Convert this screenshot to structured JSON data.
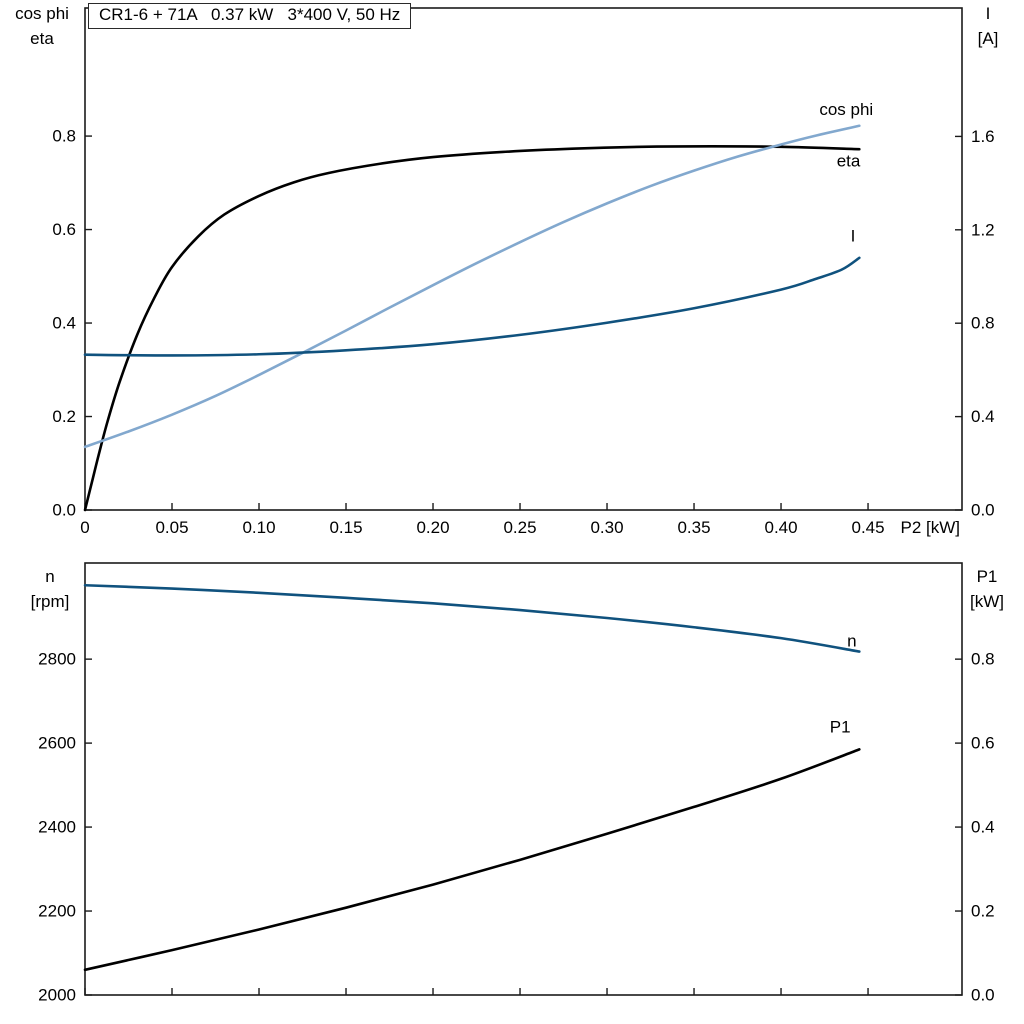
{
  "accent_colors": {
    "black_curve": "#000000",
    "light_blue_curve": "#82a8ce",
    "dark_blue_curve": "#10527e",
    "plot_border": "#1a1a1a"
  },
  "chart_data": [
    {
      "type": "line",
      "title": "CR1-6 + 71A   0.37 kW   3*400 V, 50 Hz",
      "x_axis": {
        "label": "P2 [kW]",
        "min": 0,
        "max": 0.504,
        "ticks": [
          0,
          0.05,
          0.1,
          0.15,
          0.2,
          0.25,
          0.3,
          0.35,
          0.4,
          0.45
        ],
        "tick_labels": [
          "0",
          "0.05",
          "0.10",
          "0.15",
          "0.20",
          "0.25",
          "0.30",
          "0.35",
          "0.40",
          "0.45"
        ]
      },
      "y_left": {
        "label_lines": [
          "cos phi",
          "eta"
        ],
        "min": 0,
        "max": 1.074,
        "ticks": [
          0.0,
          0.2,
          0.4,
          0.6,
          0.8
        ],
        "tick_labels": [
          "0.0",
          "0.2",
          "0.4",
          "0.6",
          "0.8"
        ]
      },
      "y_right": {
        "label_lines": [
          "I",
          "[A]"
        ],
        "min": 0,
        "max": 2.15,
        "ticks": [
          0.0,
          0.4,
          0.8,
          1.2,
          1.6
        ],
        "tick_labels": [
          "0.0",
          "0.4",
          "0.8",
          "1.2",
          "1.6"
        ]
      },
      "series": [
        {
          "name": "eta",
          "axis": "left",
          "color": "#000000",
          "label": "eta",
          "label_at": [
            0.432,
            0.735
          ],
          "points": [
            [
              0,
              0
            ],
            [
              0.004,
              0.06
            ],
            [
              0.008,
              0.12
            ],
            [
              0.013,
              0.19
            ],
            [
              0.02,
              0.275
            ],
            [
              0.03,
              0.375
            ],
            [
              0.04,
              0.455
            ],
            [
              0.05,
              0.52
            ],
            [
              0.065,
              0.585
            ],
            [
              0.08,
              0.632
            ],
            [
              0.1,
              0.672
            ],
            [
              0.12,
              0.701
            ],
            [
              0.14,
              0.721
            ],
            [
              0.17,
              0.741
            ],
            [
              0.2,
              0.755
            ],
            [
              0.24,
              0.766
            ],
            [
              0.28,
              0.773
            ],
            [
              0.32,
              0.777
            ],
            [
              0.36,
              0.778
            ],
            [
              0.4,
              0.777
            ],
            [
              0.445,
              0.772
            ]
          ]
        },
        {
          "name": "cos phi",
          "axis": "left",
          "color": "#82a8ce",
          "label": "cos phi",
          "label_at": [
            0.422,
            0.845
          ],
          "points": [
            [
              0,
              0.135
            ],
            [
              0.025,
              0.168
            ],
            [
              0.05,
              0.204
            ],
            [
              0.075,
              0.244
            ],
            [
              0.1,
              0.289
            ],
            [
              0.125,
              0.336
            ],
            [
              0.15,
              0.384
            ],
            [
              0.175,
              0.433
            ],
            [
              0.2,
              0.481
            ],
            [
              0.225,
              0.528
            ],
            [
              0.25,
              0.573
            ],
            [
              0.275,
              0.616
            ],
            [
              0.3,
              0.656
            ],
            [
              0.325,
              0.693
            ],
            [
              0.35,
              0.726
            ],
            [
              0.375,
              0.756
            ],
            [
              0.4,
              0.782
            ],
            [
              0.42,
              0.801
            ],
            [
              0.445,
              0.822
            ]
          ]
        },
        {
          "name": "I",
          "axis": "right",
          "color": "#10527e",
          "label": "I",
          "label_at": [
            0.44,
            1.15
          ],
          "points": [
            [
              0,
              0.665
            ],
            [
              0.05,
              0.662
            ],
            [
              0.1,
              0.667
            ],
            [
              0.15,
              0.684
            ],
            [
              0.2,
              0.71
            ],
            [
              0.25,
              0.75
            ],
            [
              0.3,
              0.802
            ],
            [
              0.35,
              0.864
            ],
            [
              0.4,
              0.944
            ],
            [
              0.42,
              0.99
            ],
            [
              0.435,
              1.03
            ],
            [
              0.445,
              1.08
            ]
          ]
        }
      ]
    },
    {
      "type": "line",
      "title": "",
      "x_axis": {
        "label": "",
        "min": 0,
        "max": 0.504,
        "ticks": [
          0,
          0.05,
          0.1,
          0.15,
          0.2,
          0.25,
          0.3,
          0.35,
          0.4,
          0.45
        ],
        "tick_labels": []
      },
      "y_left": {
        "label_lines": [
          "n",
          "[rpm]"
        ],
        "min": 2000,
        "max": 3029,
        "ticks": [
          2000,
          2200,
          2400,
          2600,
          2800
        ],
        "tick_labels": [
          "2000",
          "2200",
          "2400",
          "2600",
          "2800"
        ]
      },
      "y_right": {
        "label_lines": [
          "P1",
          "[kW]"
        ],
        "min": 0,
        "max": 1.029,
        "ticks": [
          0.0,
          0.2,
          0.4,
          0.6,
          0.8
        ],
        "tick_labels": [
          "0.0",
          "0.2",
          "0.4",
          "0.6",
          "0.8"
        ]
      },
      "series": [
        {
          "name": "n",
          "axis": "left",
          "color": "#10527e",
          "label": "n",
          "label_at": [
            0.438,
            2830
          ],
          "points": [
            [
              0,
              2976
            ],
            [
              0.05,
              2968
            ],
            [
              0.1,
              2958
            ],
            [
              0.15,
              2946
            ],
            [
              0.2,
              2933
            ],
            [
              0.25,
              2917
            ],
            [
              0.3,
              2898
            ],
            [
              0.35,
              2876
            ],
            [
              0.4,
              2850
            ],
            [
              0.445,
              2818
            ]
          ]
        },
        {
          "name": "P1",
          "axis": "right",
          "color": "#000000",
          "label": "P1",
          "label_at": [
            0.428,
            0.625
          ],
          "points": [
            [
              0,
              0.06
            ],
            [
              0.05,
              0.107
            ],
            [
              0.1,
              0.156
            ],
            [
              0.15,
              0.208
            ],
            [
              0.2,
              0.263
            ],
            [
              0.25,
              0.322
            ],
            [
              0.3,
              0.384
            ],
            [
              0.35,
              0.448
            ],
            [
              0.4,
              0.515
            ],
            [
              0.445,
              0.585
            ]
          ]
        }
      ]
    }
  ]
}
